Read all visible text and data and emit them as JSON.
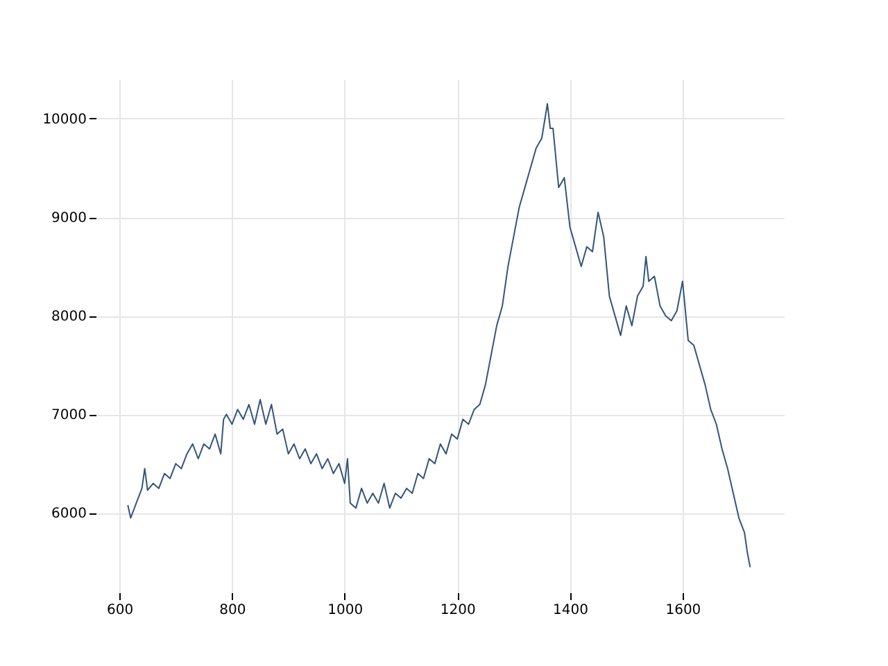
{
  "chart_data": {
    "type": "line",
    "x": [
      615,
      620,
      630,
      640,
      645,
      650,
      660,
      670,
      680,
      690,
      700,
      710,
      720,
      730,
      740,
      750,
      760,
      770,
      780,
      785,
      790,
      800,
      810,
      820,
      830,
      840,
      850,
      860,
      870,
      880,
      890,
      900,
      910,
      920,
      930,
      940,
      950,
      960,
      970,
      980,
      990,
      1000,
      1005,
      1010,
      1020,
      1030,
      1040,
      1050,
      1060,
      1070,
      1080,
      1090,
      1100,
      1110,
      1120,
      1130,
      1140,
      1150,
      1160,
      1170,
      1180,
      1190,
      1200,
      1210,
      1220,
      1230,
      1240,
      1250,
      1260,
      1270,
      1280,
      1290,
      1300,
      1310,
      1320,
      1330,
      1340,
      1350,
      1360,
      1365,
      1370,
      1380,
      1390,
      1400,
      1410,
      1420,
      1430,
      1440,
      1450,
      1460,
      1470,
      1480,
      1490,
      1500,
      1510,
      1520,
      1530,
      1535,
      1540,
      1550,
      1560,
      1570,
      1580,
      1590,
      1600,
      1610,
      1620,
      1630,
      1640,
      1650,
      1660,
      1670,
      1680,
      1690,
      1700,
      1710,
      1715,
      1720
    ],
    "series": [
      {
        "color": "#34557a",
        "values": [
          6080,
          5950,
          6100,
          6250,
          6450,
          6230,
          6300,
          6250,
          6400,
          6350,
          6500,
          6450,
          6600,
          6700,
          6550,
          6700,
          6650,
          6800,
          6600,
          6950,
          7000,
          6900,
          7050,
          6950,
          7100,
          6900,
          7150,
          6900,
          7100,
          6800,
          6850,
          6600,
          6700,
          6550,
          6650,
          6500,
          6600,
          6450,
          6550,
          6400,
          6500,
          6300,
          6550,
          6100,
          6050,
          6250,
          6100,
          6200,
          6100,
          6300,
          6050,
          6200,
          6150,
          6250,
          6200,
          6400,
          6350,
          6550,
          6500,
          6700,
          6600,
          6800,
          6750,
          6950,
          6900,
          7050,
          7100,
          7300,
          7600,
          7900,
          8100,
          8500,
          8800,
          9100,
          9300,
          9500,
          9700,
          9800,
          10150,
          9900,
          9900,
          9300,
          9400,
          8900,
          8700,
          8500,
          8700,
          8650,
          9050,
          8800,
          8200,
          8000,
          7800,
          8100,
          7900,
          8200,
          8300,
          8600,
          8350,
          8400,
          8100,
          8000,
          7950,
          8050,
          8350,
          7750,
          7700,
          7500,
          7300,
          7050,
          6900,
          6650,
          6450,
          6200,
          5950,
          5800,
          5600,
          5450
        ]
      }
    ],
    "xlim": [
      558,
      1780
    ],
    "ylim": [
      5194,
      10400
    ],
    "xticks": [
      600,
      800,
      1000,
      1200,
      1400,
      1600
    ],
    "yticks": [
      6000,
      7000,
      8000,
      9000,
      10000
    ],
    "grid": true
  }
}
